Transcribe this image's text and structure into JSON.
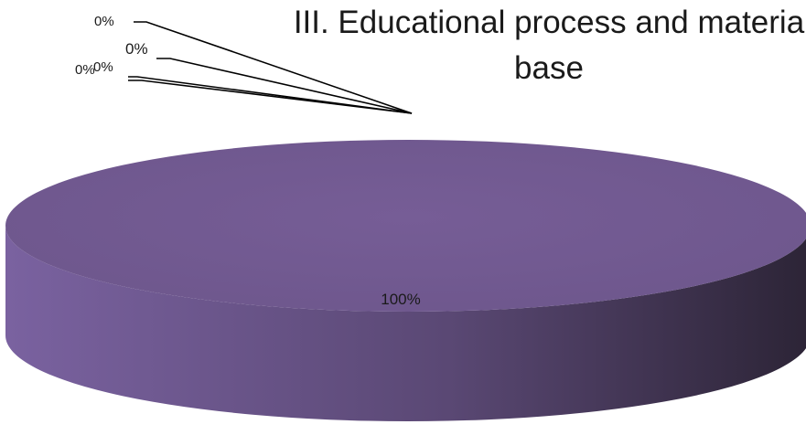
{
  "chart_data": {
    "type": "pie",
    "title_line1": "III. Educational process and materia",
    "title_line2": "base",
    "slices": [
      {
        "label": "0%",
        "value": 0
      },
      {
        "label": "0%",
        "value": 0
      },
      {
        "label": "0%",
        "value": 0
      },
      {
        "label": "0%",
        "value": 0
      },
      {
        "label": "100%",
        "value": 100
      }
    ],
    "colors": {
      "main_top": "#765d96",
      "side_light": "#7a62a0",
      "side_dark": "#2c2436",
      "leader": "#000000"
    }
  }
}
